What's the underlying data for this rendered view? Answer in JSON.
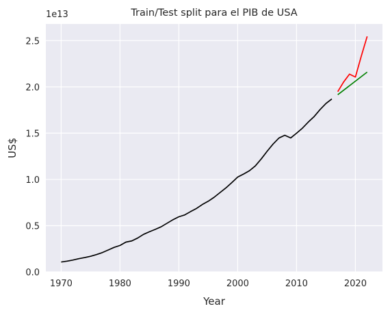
{
  "chart_data": {
    "type": "line",
    "title": "Train/Test split para el PIB de USA",
    "xlabel": "Year",
    "ylabel": "US$",
    "y_offset_label": "1e13",
    "y_multiplier": 10000000000000.0,
    "xlim": [
      1967.4,
      2024.6
    ],
    "ylim": [
      0,
      2.68
    ],
    "x_ticks": [
      1970,
      1980,
      1990,
      2000,
      2010,
      2020
    ],
    "x_tick_labels": [
      "1970",
      "1980",
      "1990",
      "2000",
      "2010",
      "2020"
    ],
    "y_ticks": [
      0,
      0.5,
      1.0,
      1.5,
      2.0,
      2.5
    ],
    "y_tick_labels": [
      "0.0",
      "0.5",
      "1.0",
      "1.5",
      "2.0",
      "2.5"
    ],
    "grid": true,
    "background": "#eaeaf2",
    "series": [
      {
        "color": "#000000",
        "x": [
          1970,
          1971,
          1972,
          1973,
          1974,
          1975,
          1976,
          1977,
          1978,
          1979,
          1980,
          1981,
          1982,
          1983,
          1984,
          1985,
          1986,
          1987,
          1988,
          1989,
          1990,
          1991,
          1992,
          1993,
          1994,
          1995,
          1996,
          1997,
          1998,
          1999,
          2000,
          2001,
          2002,
          2003,
          2004,
          2005,
          2006,
          2007,
          2008,
          2009,
          2010,
          2011,
          2012,
          2013,
          2014,
          2015,
          2016
        ],
        "y": [
          0.107,
          0.116,
          0.128,
          0.143,
          0.155,
          0.169,
          0.187,
          0.209,
          0.237,
          0.265,
          0.286,
          0.322,
          0.335,
          0.366,
          0.406,
          0.434,
          0.46,
          0.488,
          0.526,
          0.564,
          0.596,
          0.616,
          0.652,
          0.686,
          0.729,
          0.764,
          0.807,
          0.858,
          0.908,
          0.965,
          1.025,
          1.058,
          1.094,
          1.146,
          1.221,
          1.304,
          1.381,
          1.447,
          1.477,
          1.448,
          1.499,
          1.554,
          1.62,
          1.68,
          1.755,
          1.821,
          1.87
        ]
      },
      {
        "color": "#ff0000",
        "x": [
          2017,
          2018,
          2019,
          2020,
          2021,
          2022
        ],
        "y": [
          1.948,
          2.053,
          2.138,
          2.106,
          2.332,
          2.546
        ]
      },
      {
        "color": "#008000",
        "x": [
          2017,
          2022
        ],
        "y": [
          1.915,
          2.16
        ]
      }
    ]
  }
}
